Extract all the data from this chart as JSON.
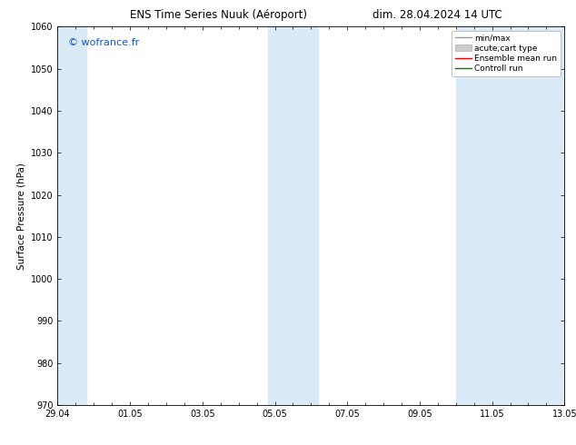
{
  "title_left": "ENS Time Series Nuuk (Aéroport)",
  "title_right": "dim. 28.04.2024 14 UTC",
  "ylabel": "Surface Pressure (hPa)",
  "ylim": [
    970,
    1060
  ],
  "yticks": [
    970,
    980,
    990,
    1000,
    1010,
    1020,
    1030,
    1040,
    1050,
    1060
  ],
  "xtick_labels": [
    "29.04",
    "01.05",
    "03.05",
    "05.05",
    "07.05",
    "09.05",
    "11.05",
    "13.05"
  ],
  "xmin": 0.0,
  "xmax": 14.0,
  "shaded_bands": [
    {
      "xstart": 0.0,
      "xend": 0.8
    },
    {
      "xstart": 5.8,
      "xend": 7.2
    },
    {
      "xstart": 11.0,
      "xend": 14.0
    }
  ],
  "shade_color": "#daeaf7",
  "watermark_text": "© wofrance.fr",
  "watermark_color": "#1a56c4",
  "background_color": "#ffffff",
  "title_fontsize": 8.5,
  "label_fontsize": 7.5,
  "tick_fontsize": 7,
  "legend_fontsize": 6.5
}
